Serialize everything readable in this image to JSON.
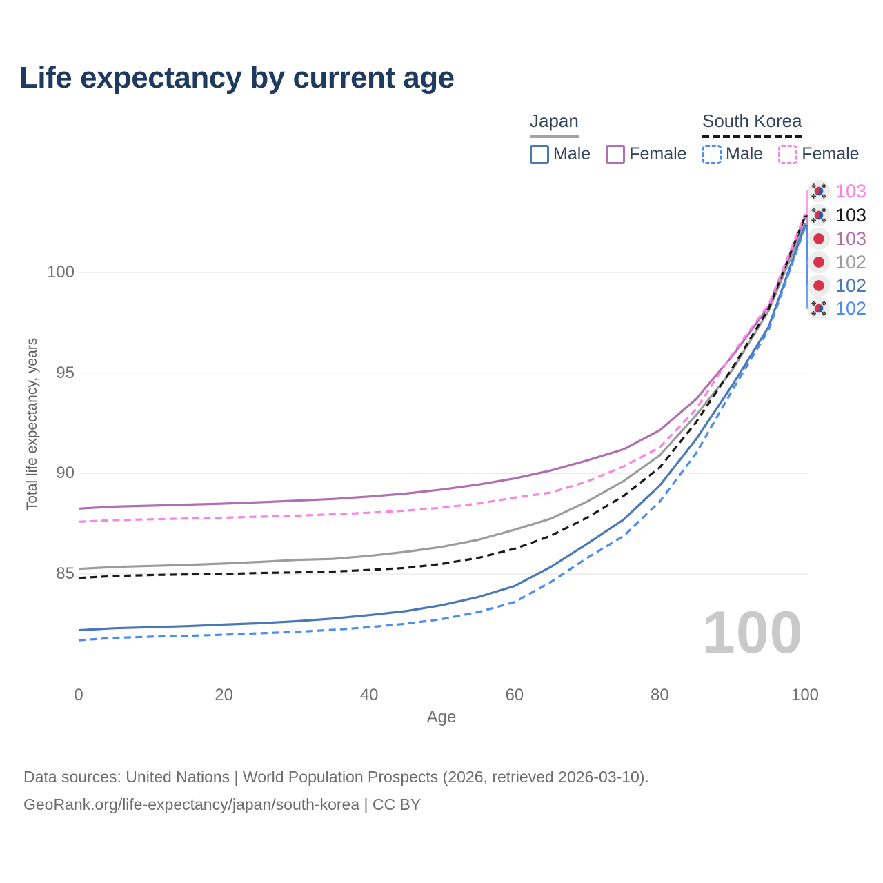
{
  "title": "Life expectancy by current age",
  "legend": {
    "japan": {
      "title": "Japan",
      "male_label": "Male",
      "female_label": "Female",
      "line_color": "#a3a3a3",
      "male_color": "#4a78b5",
      "female_color": "#b06fae",
      "style": "solid"
    },
    "south_korea": {
      "title": "South Korea",
      "male_label": "Male",
      "female_label": "Female",
      "line_color": "#1a1a1a",
      "male_color": "#4a8cf2",
      "female_color": "#fb83e4",
      "style": "dashed"
    }
  },
  "watermark": "100",
  "footer": {
    "line1": "Data sources: United Nations | World Population Prospects (2026, retrieved 2026-03-10).",
    "line2": "GeoRank.org/life-expectancy/japan/south-korea | CC BY"
  },
  "chart_data": {
    "type": "line",
    "title": "Life expectancy by current age",
    "xlabel": "Age",
    "ylabel": "Total life expectancy, years",
    "xlim": [
      0,
      100
    ],
    "ylim": [
      81,
      103.5
    ],
    "x_ticks": [
      0,
      20,
      40,
      60,
      80,
      100
    ],
    "y_ticks": [
      85,
      90,
      95,
      100
    ],
    "grid": "horizontal",
    "legend_position": "top-right",
    "x": [
      0,
      5,
      10,
      15,
      20,
      25,
      30,
      35,
      40,
      45,
      50,
      55,
      60,
      65,
      70,
      75,
      80,
      85,
      90,
      95,
      100
    ],
    "series": [
      {
        "id": "south-korea-female",
        "name": "South Korea Female",
        "country": "kr",
        "style": "dashed",
        "color": "#fb83e4",
        "end_label": "103",
        "values": [
          87.6,
          87.68,
          87.72,
          87.76,
          87.8,
          87.85,
          87.9,
          87.97,
          88.05,
          88.15,
          88.3,
          88.5,
          88.8,
          89.05,
          89.6,
          90.35,
          91.3,
          93.2,
          95.95,
          98.4,
          102.9
        ]
      },
      {
        "id": "south-korea-total",
        "name": "South Korea Both sexes",
        "country": "kr",
        "style": "dashed",
        "color": "#1a1a1a",
        "end_label": "103",
        "values": [
          84.8,
          84.9,
          84.95,
          84.98,
          85.0,
          85.05,
          85.08,
          85.12,
          85.2,
          85.3,
          85.5,
          85.8,
          86.25,
          86.9,
          87.8,
          88.88,
          90.3,
          92.55,
          95.25,
          98.2,
          102.8
        ]
      },
      {
        "id": "japan-female",
        "name": "Japan Female",
        "country": "jp",
        "style": "solid",
        "color": "#b06fae",
        "end_label": "103",
        "values": [
          88.25,
          88.35,
          88.4,
          88.45,
          88.5,
          88.57,
          88.65,
          88.73,
          88.85,
          89.0,
          89.2,
          89.45,
          89.75,
          90.15,
          90.65,
          91.2,
          92.15,
          93.7,
          95.85,
          98.3,
          102.75
        ]
      },
      {
        "id": "japan-total",
        "name": "Japan Both sexes",
        "country": "jp",
        "style": "solid",
        "color": "#9c9c9c",
        "end_label": "102",
        "values": [
          85.25,
          85.35,
          85.4,
          85.45,
          85.52,
          85.6,
          85.7,
          85.75,
          85.9,
          86.1,
          86.35,
          86.7,
          87.2,
          87.75,
          88.6,
          89.62,
          90.9,
          92.9,
          95.15,
          98.1,
          102.45
        ]
      },
      {
        "id": "japan-male",
        "name": "Japan Male",
        "country": "jp",
        "style": "solid",
        "color": "#4a78b5",
        "end_label": "102",
        "values": [
          82.2,
          82.3,
          82.35,
          82.4,
          82.48,
          82.55,
          82.65,
          82.78,
          82.95,
          83.15,
          83.45,
          83.85,
          84.4,
          85.35,
          86.5,
          87.7,
          89.4,
          91.7,
          94.4,
          97.3,
          102.35
        ]
      },
      {
        "id": "south-korea-male",
        "name": "South Korea Male",
        "country": "kr",
        "style": "dashed",
        "color": "#4a8cf2",
        "end_label": "102",
        "values": [
          81.7,
          81.82,
          81.88,
          81.92,
          81.98,
          82.05,
          82.12,
          82.22,
          82.35,
          82.52,
          82.75,
          83.1,
          83.6,
          84.6,
          85.8,
          86.88,
          88.6,
          91.0,
          94.15,
          97.15,
          102.25
        ]
      }
    ]
  }
}
